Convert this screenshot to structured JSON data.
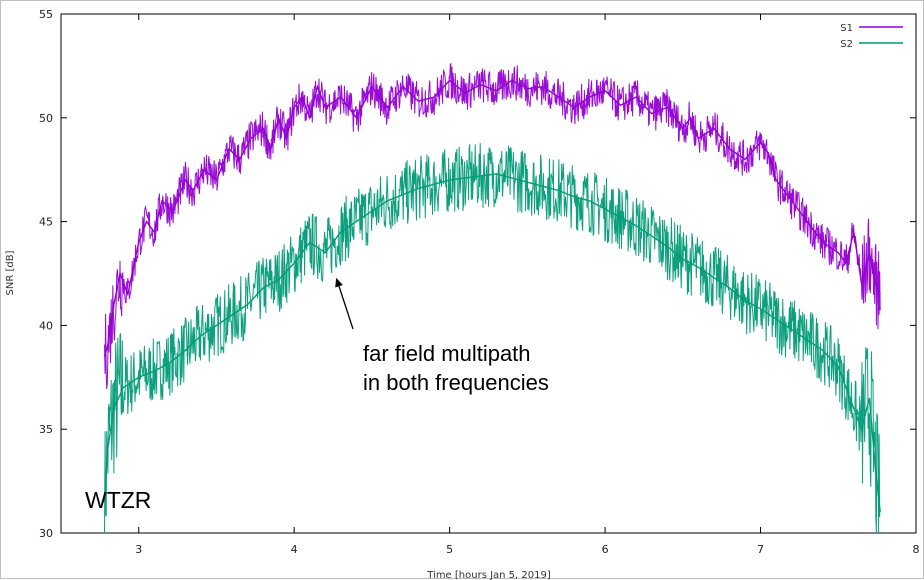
{
  "chart_data": {
    "type": "line",
    "title": "",
    "xlabel": "Time [hours Jan 5, 2019]",
    "ylabel": "SNR [dB]",
    "xlim": [
      2.5,
      8
    ],
    "ylim": [
      30,
      55
    ],
    "xticks": [
      3,
      4,
      5,
      6,
      7,
      8
    ],
    "yticks": [
      30,
      35,
      40,
      45,
      50,
      55
    ],
    "grid": false,
    "legend": "top-right",
    "series": [
      {
        "name": "S1",
        "color": "#9400d3",
        "x": [
          2.78,
          2.8,
          2.84,
          2.88,
          2.93,
          3.0,
          3.05,
          3.1,
          3.15,
          3.22,
          3.3,
          3.35,
          3.42,
          3.5,
          3.58,
          3.65,
          3.72,
          3.8,
          3.85,
          3.9,
          3.95,
          4.0,
          4.05,
          4.1,
          4.15,
          4.2,
          4.3,
          4.4,
          4.5,
          4.6,
          4.7,
          4.8,
          4.9,
          5.0,
          5.1,
          5.2,
          5.3,
          5.4,
          5.5,
          5.6,
          5.7,
          5.8,
          5.9,
          6.0,
          6.1,
          6.2,
          6.3,
          6.4,
          6.5,
          6.55,
          6.6,
          6.7,
          6.8,
          6.9,
          7.0,
          7.05,
          7.1,
          7.15,
          7.2,
          7.3,
          7.4,
          7.5,
          7.55,
          7.6,
          7.65,
          7.7,
          7.74,
          7.77
        ],
        "y": [
          38.5,
          39.0,
          41.0,
          42.5,
          41.5,
          44.0,
          45.0,
          44.5,
          46.0,
          45.5,
          47.0,
          46.5,
          47.5,
          47.0,
          48.5,
          48.0,
          49.0,
          49.5,
          48.5,
          50.0,
          49.0,
          50.5,
          51.0,
          50.0,
          51.5,
          50.5,
          51.0,
          50.0,
          51.5,
          50.5,
          51.5,
          50.8,
          51.0,
          51.8,
          51.2,
          51.6,
          51.3,
          51.8,
          51.4,
          51.5,
          51.0,
          50.5,
          51.0,
          51.3,
          50.6,
          51.0,
          50.2,
          50.5,
          49.5,
          50.0,
          49.0,
          49.5,
          48.5,
          48.0,
          48.8,
          48.3,
          47.0,
          46.5,
          46.0,
          45.0,
          44.0,
          43.5,
          43.0,
          44.5,
          42.0,
          43.5,
          42.0,
          41.5
        ]
      },
      {
        "name": "S2",
        "color": "#009b77",
        "x": [
          2.78,
          2.8,
          2.84,
          2.9,
          3.0,
          3.1,
          3.2,
          3.3,
          3.4,
          3.5,
          3.6,
          3.7,
          3.8,
          3.9,
          4.0,
          4.1,
          4.2,
          4.3,
          4.4,
          4.5,
          4.6,
          4.7,
          4.8,
          4.9,
          5.0,
          5.1,
          5.2,
          5.3,
          5.4,
          5.5,
          5.6,
          5.7,
          5.8,
          5.9,
          6.0,
          6.1,
          6.2,
          6.3,
          6.4,
          6.5,
          6.6,
          6.7,
          6.8,
          6.9,
          7.0,
          7.1,
          7.2,
          7.3,
          7.4,
          7.5,
          7.55,
          7.6,
          7.65,
          7.7,
          7.74,
          7.77
        ],
        "y": [
          31.5,
          34.0,
          36.0,
          37.0,
          37.5,
          37.8,
          38.2,
          38.8,
          39.5,
          40.0,
          40.5,
          41.0,
          41.8,
          42.2,
          43.0,
          44.0,
          43.5,
          44.5,
          45.0,
          45.5,
          46.0,
          46.3,
          46.6,
          46.8,
          47.0,
          47.1,
          47.2,
          47.3,
          47.1,
          46.9,
          46.7,
          46.5,
          46.2,
          46.0,
          45.6,
          45.2,
          44.8,
          44.3,
          43.8,
          43.2,
          42.8,
          42.3,
          41.8,
          41.2,
          40.8,
          40.3,
          39.8,
          39.3,
          38.8,
          38.0,
          37.0,
          36.0,
          35.0,
          36.5,
          33.0,
          31.0
        ]
      }
    ],
    "annotations": [
      {
        "text_lines": [
          "far field multipath",
          "in both frequencies"
        ],
        "arrow_to": [
          4.27,
          42.3
        ]
      },
      {
        "text": "WTZR"
      }
    ]
  }
}
